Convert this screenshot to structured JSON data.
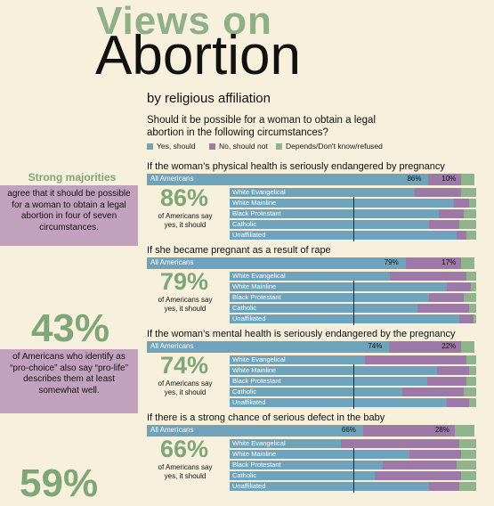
{
  "title": {
    "line1": "Views on",
    "line2": "Abortion",
    "subtitle": "by religious affiliation"
  },
  "question": "Should it be possible for a woman to obtain a legal abortion in the following circumstances?",
  "legend": [
    {
      "label": "Yes, should",
      "color": "#6fa3bc"
    },
    {
      "label": "No, should not",
      "color": "#9d79a8"
    },
    {
      "label": "Depends/Don't know/refused",
      "color": "#8fb48b"
    }
  ],
  "sidebar": {
    "strong_head": "Strong majorities",
    "strong_text": "agree that it should be possible for a woman to obtain a legal abortion in four of seven circumstances.",
    "prochoice_pct": "43%",
    "prochoice_text": "of Americans who identify as “pro-choice” also say “pro-life” describes them at least somewhat well.",
    "bottom_pct": "59%"
  },
  "chart_data": [
    {
      "type": "bar",
      "title": "If the woman’s physical health is seriously endangered by pregnancy",
      "big_pct": "86%",
      "big_caption": "of Americans say yes, it should",
      "all": {
        "name": "All Americans",
        "yes": 86,
        "no": 10,
        "yes_label": "86%",
        "no_label": "10%"
      },
      "groups": [
        {
          "name": "White Evangelical",
          "yes": 75,
          "no": 19
        },
        {
          "name": "White Mainline",
          "yes": 91,
          "no": 6
        },
        {
          "name": "Black Protestant",
          "yes": 85,
          "no": 10
        },
        {
          "name": "Catholic",
          "yes": 81,
          "no": 12
        },
        {
          "name": "Unaffiliated",
          "yes": 92,
          "no": 4
        }
      ]
    },
    {
      "type": "bar",
      "title": "If she became pregnant as a result of rape",
      "big_pct": "79%",
      "big_caption": "of Americans say yes, it should",
      "all": {
        "name": "All Americans",
        "yes": 79,
        "no": 17,
        "yes_label": "79%",
        "no_label": "17%"
      },
      "groups": [
        {
          "name": "White Evangelical",
          "yes": 65,
          "no": 31
        },
        {
          "name": "White Mainline",
          "yes": 88,
          "no": 10
        },
        {
          "name": "Black Protestant",
          "yes": 81,
          "no": 14
        },
        {
          "name": "Catholic",
          "yes": 76,
          "no": 21
        },
        {
          "name": "Unaffiliated",
          "yes": 93,
          "no": 6
        }
      ]
    },
    {
      "type": "bar",
      "title": "If the woman’s mental health is seriously endangered by the pregnancy",
      "big_pct": "74%",
      "big_caption": "of Americans say yes, it should",
      "all": {
        "name": "All Americans",
        "yes": 74,
        "no": 22,
        "yes_label": "74%",
        "no_label": "22%"
      },
      "groups": [
        {
          "name": "White Evangelical",
          "yes": 55,
          "no": 41
        },
        {
          "name": "White Mainline",
          "yes": 84,
          "no": 13
        },
        {
          "name": "Black Protestant",
          "yes": 80,
          "no": 16
        },
        {
          "name": "Catholic",
          "yes": 70,
          "no": 25
        },
        {
          "name": "Unaffiliated",
          "yes": 88,
          "no": 9
        }
      ]
    },
    {
      "type": "bar",
      "title": "If there is a strong chance of serious defect in the baby",
      "big_pct": "66%",
      "big_caption": "of Americans say yes, it should",
      "all": {
        "name": "All Americans",
        "yes": 66,
        "no": 28,
        "yes_label": "66%",
        "no_label": "28%"
      },
      "groups": [
        {
          "name": "White Evangelical",
          "yes": 45,
          "no": 48
        },
        {
          "name": "White Mainline",
          "yes": 73,
          "no": 21
        },
        {
          "name": "Black Protestant",
          "yes": 62,
          "no": 30
        },
        {
          "name": "Catholic",
          "yes": 59,
          "no": 35
        },
        {
          "name": "Unaffiliated",
          "yes": 81,
          "no": 12
        }
      ]
    }
  ]
}
